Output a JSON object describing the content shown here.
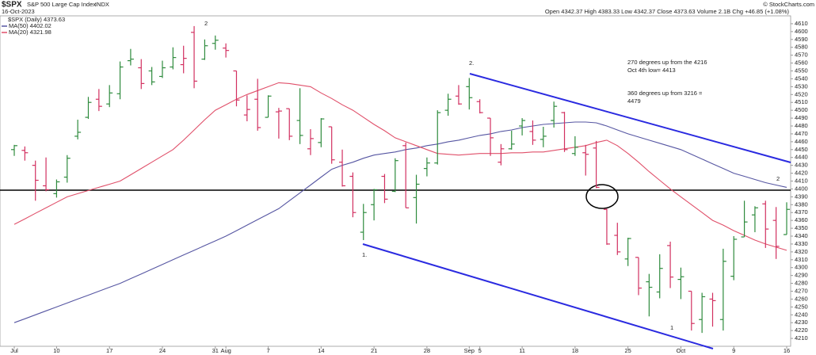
{
  "header": {
    "symbol": "$SPX",
    "name": "S&P 500 Large Cap Index",
    "exchange": "INDX",
    "date": "16-Oct-2023",
    "quote": "Open 4342.37 High 4383.33 Low 4342.37 Close 4373.63 Volume 2.1B Chg +46.85 (+1.08%)",
    "credit": "© StockCharts.com"
  },
  "annotations": {
    "wave_2_top": "2",
    "wave_2_sep": "2.",
    "wave_1_aug": "1.",
    "wave_1_oct": "1",
    "wave_2_right": "2",
    "note_270_line1": "270 degrees up from the 4216",
    "note_270_line2": "Oct 4th low= 4413",
    "note_360_line1": "360 degrees up from 3216 =",
    "note_360_line2": "4479"
  },
  "chart_data": {
    "type": "ohlc",
    "up_color": "#2e8b3d",
    "down_color": "#d23060",
    "categories": [
      "Jul",
      null,
      null,
      null,
      "10",
      null,
      null,
      null,
      null,
      "17",
      null,
      null,
      null,
      null,
      "24",
      null,
      null,
      null,
      null,
      "31",
      "Aug",
      null,
      null,
      null,
      "7",
      null,
      null,
      null,
      null,
      "14",
      null,
      null,
      null,
      null,
      "21",
      null,
      null,
      null,
      null,
      "28",
      null,
      null,
      null,
      "Sep",
      "5",
      null,
      null,
      null,
      "11",
      null,
      null,
      null,
      null,
      "18",
      null,
      null,
      null,
      null,
      "25",
      null,
      null,
      null,
      null,
      "Oct",
      null,
      null,
      null,
      null,
      "9",
      null,
      null,
      null,
      null,
      "16"
    ],
    "series": [
      {
        "name": "$SPX (Daily) 4373.63",
        "open": [
          4450,
          4449,
          4430,
          4404,
          4394,
          4415,
          4467,
          4491,
          4514,
          4508,
          4521,
          4563,
          4554,
          4550,
          4543,
          4555,
          4558,
          4599,
          4565,
          4585,
          4579,
          4550,
          4494,
          4514,
          4491,
          4498,
          4502,
          4487,
          4451,
          4459,
          4479,
          4434,
          4416,
          4345,
          4380,
          4416,
          4397,
          4455,
          4389,
          4426,
          4433,
          4500,
          4518,
          4530,
          4511,
          4490,
          4434,
          4451,
          4480,
          4473,
          4463,
          4487,
          4497,
          4445,
          4446,
          4452,
          4374,
          4341,
          4311,
          4313,
          4282,
          4269,
          4328,
          4285,
          4270,
          4234,
          4260,
          4234,
          4289,
          4339,
          4367,
          4381,
          4360,
          4342
        ],
        "high": [
          4456,
          4454,
          4436,
          4440,
          4412,
          4443,
          4488,
          4517,
          4527,
          4532,
          4562,
          4578,
          4565,
          4555,
          4563,
          4580,
          4582,
          4607,
          4590,
          4595,
          4585,
          4550,
          4519,
          4540,
          4519,
          4503,
          4502,
          4528,
          4476,
          4490,
          4479,
          4450,
          4421,
          4381,
          4400,
          4419,
          4439,
          4459,
          4418,
          4440,
          4500,
          4521,
          4532,
          4541,
          4514,
          4490,
          4457,
          4474,
          4490,
          4487,
          4479,
          4511,
          4498,
          4467,
          4456,
          4461,
          4375,
          4357,
          4338,
          4313,
          4292,
          4317,
          4333,
          4300,
          4270,
          4268,
          4268,
          4324,
          4340,
          4385,
          4378,
          4385,
          4377,
          4383
        ],
        "low": [
          4442,
          4436,
          4385,
          4397,
          4389,
          4408,
          4463,
          4489,
          4499,
          4504,
          4514,
          4557,
          4527,
          4532,
          4541,
          4552,
          4547,
          4528,
          4564,
          4577,
          4567,
          4505,
          4486,
          4474,
          4491,
          4464,
          4462,
          4457,
          4443,
          4453,
          4432,
          4403,
          4364,
          4335,
          4360,
          4382,
          4396,
          4376,
          4356,
          4416,
          4431,
          4493,
          4507,
          4501,
          4496,
          4442,
          4430,
          4450,
          4468,
          4456,
          4453,
          4478,
          4447,
          4442,
          4417,
          4401,
          4329,
          4316,
          4302,
          4265,
          4238,
          4261,
          4274,
          4260,
          4220,
          4217,
          4225,
          4220,
          4284,
          4339,
          4345,
          4325,
          4311,
          4342
        ],
        "close": [
          4455,
          4446,
          4411,
          4399,
          4409,
          4439,
          4472,
          4510,
          4505,
          4522,
          4555,
          4565,
          4534,
          4536,
          4554,
          4567,
          4566,
          4537,
          4582,
          4589,
          4576,
          4513,
          4501,
          4478,
          4518,
          4499,
          4467,
          4468,
          4464,
          4489,
          4437,
          4404,
          4370,
          4370,
          4399,
          4387,
          4436,
          4376,
          4406,
          4433,
          4497,
          4514,
          4508,
          4516,
          4497,
          4465,
          4451,
          4457,
          4487,
          4462,
          4467,
          4505,
          4450,
          4453,
          4444,
          4402,
          4330,
          4320,
          4337,
          4274,
          4275,
          4299,
          4288,
          4288.4,
          4229,
          4263,
          4258,
          4308,
          4336,
          4358,
          4376,
          4349,
          4327,
          4374
        ]
      },
      {
        "name": "MA(50) 4402.02",
        "color": "#5656a2",
        "values": [
          4230,
          4235,
          4240,
          4245,
          4250,
          4255,
          4260,
          4265,
          4270,
          4275,
          4280,
          4286,
          4292,
          4298,
          4304,
          4310,
          4316,
          4322,
          4328,
          4334,
          4340,
          4347,
          4354,
          4361,
          4368,
          4375,
          4385,
          4395,
          4405,
          4415,
          4425,
          4430,
          4434,
          4439,
          4443,
          4445,
          4447,
          4450,
          4452,
          4455,
          4457,
          4460,
          4462,
          4465,
          4468,
          4470,
          4473,
          4475,
          4478,
          4480,
          4482,
          4483,
          4484,
          4485,
          4485,
          4484,
          4480,
          4475,
          4470,
          4466,
          4462,
          4458,
          4454,
          4450,
          4444,
          4438,
          4432,
          4426,
          4420,
          4416,
          4412,
          4408,
          4405,
          4402
        ]
      },
      {
        "name": "MA(20) 4321.98",
        "color": "#e0506a",
        "values": [
          4355,
          4362,
          4369,
          4376,
          4383,
          4390,
          4394,
          4398,
          4402,
          4406,
          4410,
          4418,
          4426,
          4434,
          4442,
          4450,
          4462,
          4475,
          4488,
          4500,
          4507,
          4514,
          4520,
          4525,
          4530,
          4535,
          4534,
          4532,
          4530,
          4522,
          4515,
          4507,
          4500,
          4491,
          4482,
          4474,
          4465,
          4460,
          4455,
          4450,
          4445,
          4444,
          4443,
          4444,
          4445,
          4445,
          4445,
          4446,
          4446,
          4447,
          4447,
          4449,
          4451,
          4453,
          4455,
          4459,
          4462,
          4455,
          4445,
          4434,
          4422,
          4411,
          4400,
          4390,
          4380,
          4370,
          4360,
          4354,
          4347,
          4341,
          4335,
          4330,
          4326,
          4322
        ]
      }
    ],
    "ylim": [
      4200,
      4620
    ],
    "yticks": [
      4210,
      4220,
      4230,
      4240,
      4250,
      4260,
      4270,
      4280,
      4290,
      4300,
      4310,
      4320,
      4330,
      4340,
      4350,
      4360,
      4370,
      4380,
      4390,
      4400,
      4410,
      4420,
      4430,
      4440,
      4450,
      4460,
      4470,
      4480,
      4490,
      4500,
      4510,
      4520,
      4530,
      4540,
      4550,
      4560,
      4570,
      4580,
      4590,
      4600,
      4610
    ]
  }
}
